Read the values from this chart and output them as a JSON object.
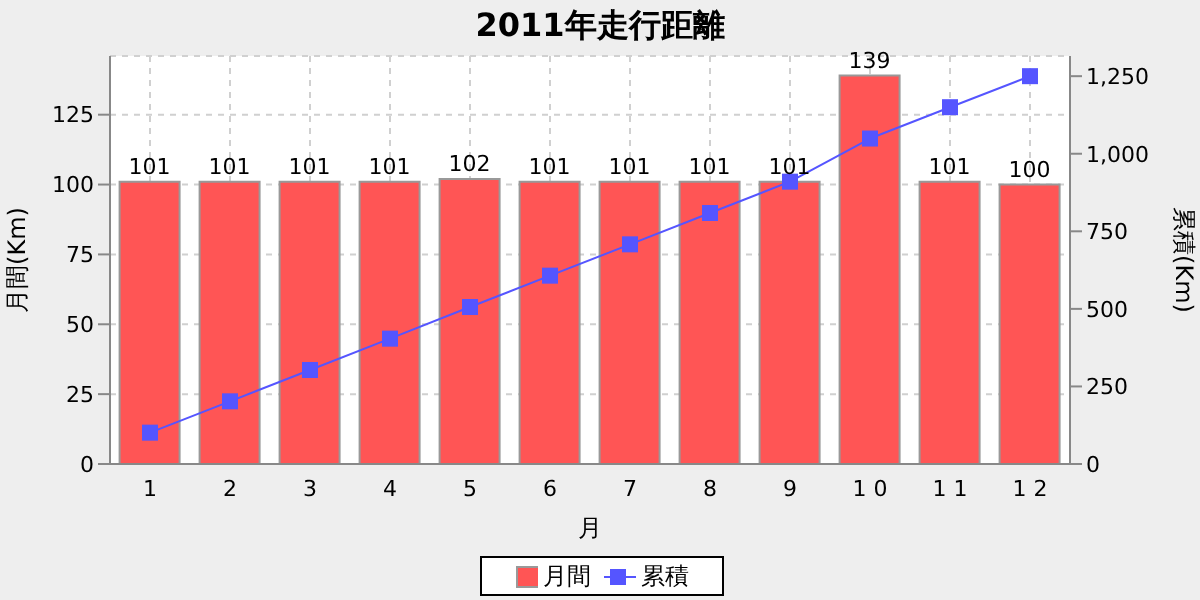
{
  "chart_data": {
    "type": "bar",
    "title": "2011年走行距離",
    "xlabel": "月",
    "ylabel": "月間(Km)",
    "y2label": "累積(Km)",
    "categories": [
      "1",
      "2",
      "3",
      "4",
      "5",
      "6",
      "7",
      "8",
      "9",
      "1 0",
      "1 1",
      "1 2"
    ],
    "series": [
      {
        "name": "月間",
        "color": "#ff5555",
        "values": [
          101,
          101,
          101,
          101,
          102,
          101,
          101,
          101,
          101,
          139,
          101,
          100
        ],
        "value_labels": [
          "101",
          "101",
          "101",
          "101",
          "102",
          "101",
          "101",
          "101",
          "101",
          "139",
          "101",
          "100"
        ]
      },
      {
        "name": "累積",
        "type": "line",
        "axis": "y2",
        "color": "#5555ff",
        "marker": "square",
        "values": [
          101,
          202,
          303,
          404,
          506,
          607,
          708,
          809,
          910,
          1049,
          1150,
          1250
        ]
      }
    ],
    "ylim": [
      0,
      146
    ],
    "yticks": [
      0,
      25,
      50,
      75,
      100,
      125
    ],
    "y2lim": [
      0,
      1315
    ],
    "y2ticks": [
      0,
      {
        "value": 250,
        "label": "250"
      },
      {
        "value": 500,
        "label": "500"
      },
      {
        "value": 750,
        "label": "750"
      },
      {
        "value": 1000,
        "label": "1,000"
      },
      {
        "value": 1250,
        "label": "1,250"
      }
    ],
    "grid": true,
    "legend": "bottom"
  }
}
